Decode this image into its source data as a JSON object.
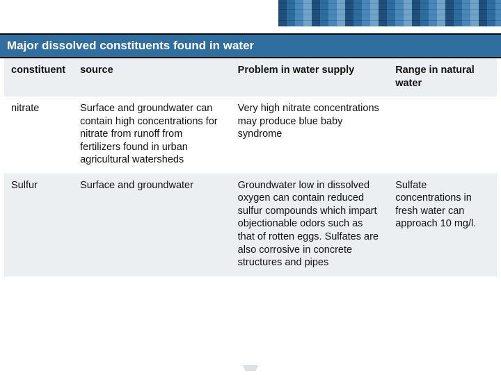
{
  "title": "Major dissolved constituents found in water",
  "colors": {
    "title_bar_bg": "#2f6e9e",
    "title_text": "#ffffff",
    "header_row_bg": "#eceff2",
    "alt_row_bg": "#eceff2",
    "row_bg": "#ffffff",
    "rule": "#0b0b0b",
    "body_text": "#111111"
  },
  "table": {
    "type": "table",
    "columns": [
      "constituent",
      "source",
      "Problem in water supply",
      "Range in natural water"
    ],
    "col_widths_pct": [
      14,
      32,
      32,
      22
    ],
    "font_size_pt": 14.5,
    "rows": [
      {
        "constituent": "nitrate",
        "source": "Surface and groundwater can contain high concentrations for nitrate from runoff from fertilizers found in urban agricultural watersheds",
        "problem": "Very high nitrate concentrations may produce blue baby syndrome",
        "range": ""
      },
      {
        "constituent": "Sulfur",
        "source": "Surface and groundwater",
        "problem": "Groundwater low in dissolved oxygen can contain reduced sulfur compounds which impart objectionable odors such as that of rotten eggs. Sulfates are also corrosive in concrete structures and pipes",
        "range": "Sulfate concentrations in fresh water can approach 10 mg/l."
      }
    ]
  }
}
